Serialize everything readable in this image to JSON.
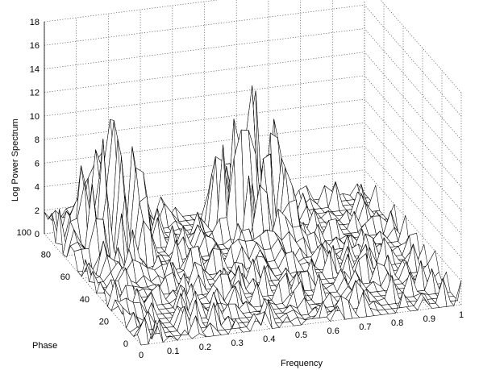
{
  "chart_data": {
    "type": "surface",
    "title": "",
    "xlabel": "Frequency",
    "ylabel": "Phase",
    "zlabel": "Log Power Spectrum",
    "xlim": [
      0,
      1
    ],
    "ylim": [
      0,
      100
    ],
    "zlim": [
      0,
      18
    ],
    "x_ticks": [
      "0",
      "0.1",
      "0.2",
      "0.3",
      "0.4",
      "0.5",
      "0.6",
      "0.7",
      "0.8",
      "0.9",
      "1"
    ],
    "y_ticks": [
      "0",
      "20",
      "40",
      "60",
      "80",
      "100"
    ],
    "z_ticks": [
      "0",
      "2",
      "4",
      "6",
      "8",
      "10",
      "12",
      "14",
      "16",
      "18"
    ],
    "grid": true,
    "series": [
      {
        "peaks": [
          {
            "frequency": 0.15,
            "phase": 80,
            "log_power": 12
          },
          {
            "frequency": 0.6,
            "phase": 80,
            "log_power": 13
          },
          {
            "frequency": 0.0,
            "phase": 85,
            "log_power": 4
          }
        ]
      }
    ]
  }
}
